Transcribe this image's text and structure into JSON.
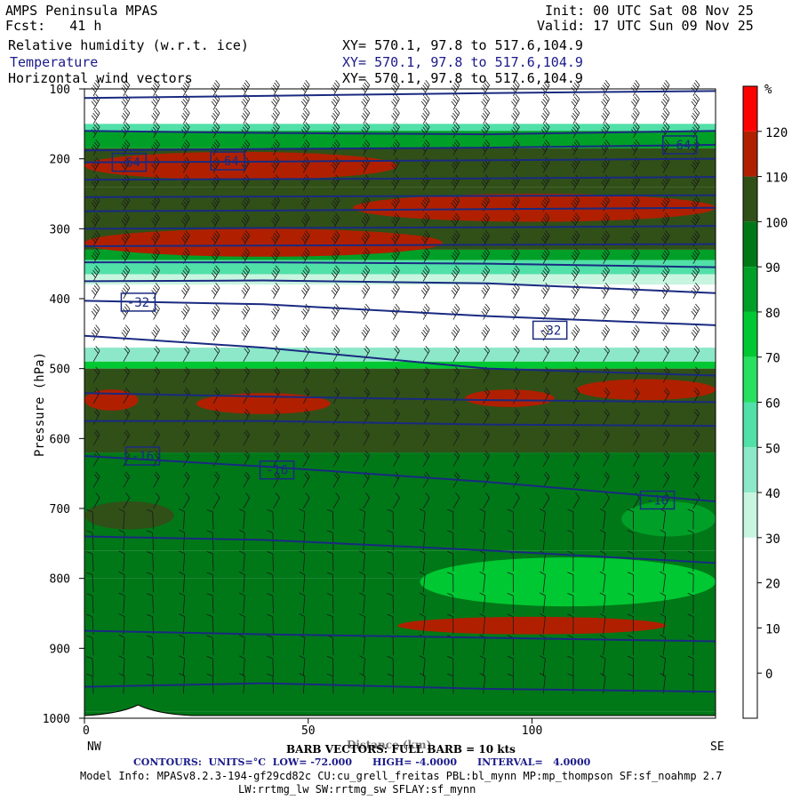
{
  "header": {
    "model": "AMPS Peninsula MPAS",
    "fcst": "Fcst:   41 h",
    "init": "Init: 00 UTC Sat 08 Nov 25",
    "valid": "Valid: 17 UTC Sun 09 Nov 25",
    "fields": [
      {
        "name": "Relative humidity (w.r.t. ice)",
        "xy": "XY= 570.1, 97.8 to 517.6,104.9",
        "color": "#000000"
      },
      {
        "name": "Temperature",
        "xy": "XY= 570.1, 97.8 to 517.6,104.9",
        "color": "#1a1a8a"
      },
      {
        "name": "Horizontal wind vectors",
        "xy": "XY= 570.1, 97.8 to 517.6,104.9",
        "color": "#000000"
      }
    ]
  },
  "footer": {
    "barb": "BARB VECTORS: FULL BARB = 10 kts",
    "xlabel_overlap": "Distance (km)",
    "contours": "CONTOURS:  UNITS=°C  LOW= -72.000      HIGH= -4.0000      INTERVAL=   4.0000",
    "model_info": "Model Info: MPASv8.2.3-194-gf29cd82c CU:cu_grell_freitas PBL:bl_mynn MP:mp_thompson SF:sf_noahmp 2.7",
    "model_info2": "LW:rrtmg_lw SW:rrtmg_sw SFLAY:sf_mynn"
  },
  "chart_data": {
    "type": "heatmap",
    "ylabel": "Pressure (hPa)",
    "xlabel": "Distance (km)",
    "xlim": [
      0,
      141
    ],
    "ylim": [
      1000,
      100
    ],
    "x_ticks": [
      0,
      50,
      100
    ],
    "y_ticks": [
      100,
      200,
      300,
      400,
      500,
      600,
      700,
      800,
      900,
      1000
    ],
    "x_end_labels": {
      "left": "NW",
      "right": "SE"
    },
    "colorbar": {
      "unit": "%",
      "levels": [
        -10,
        0,
        10,
        20,
        30,
        40,
        50,
        60,
        70,
        80,
        90,
        100,
        110,
        120,
        130
      ],
      "tick_labels": [
        0,
        10,
        20,
        30,
        40,
        50,
        60,
        70,
        80,
        90,
        100,
        110,
        120
      ],
      "colors": [
        "#ffffff",
        "#ffffff",
        "#ffffff",
        "#ffffff",
        "#c8f5e0",
        "#8ce8c8",
        "#50e0a8",
        "#28e060",
        "#00c832",
        "#00a028",
        "#007818",
        "#305018",
        "#b02000",
        "#ff0000"
      ]
    },
    "rh_bands": [
      {
        "p_top": 100,
        "p_bot": 150,
        "rh": 5
      },
      {
        "p_top": 150,
        "p_bot": 160,
        "rh": 55
      },
      {
        "p_top": 160,
        "p_bot": 185,
        "rh": 85
      },
      {
        "p_top": 185,
        "p_bot": 240,
        "rh": 105
      },
      {
        "p_top": 240,
        "p_bot": 330,
        "rh": 104
      },
      {
        "p_top": 330,
        "p_bot": 345,
        "rh": 85
      },
      {
        "p_top": 345,
        "p_bot": 365,
        "rh": 55
      },
      {
        "p_top": 365,
        "p_bot": 380,
        "rh": 35
      },
      {
        "p_top": 380,
        "p_bot": 470,
        "rh": 5
      },
      {
        "p_top": 470,
        "p_bot": 490,
        "rh": 45
      },
      {
        "p_top": 490,
        "p_bot": 500,
        "rh": 75
      },
      {
        "p_top": 500,
        "p_bot": 620,
        "rh": 104
      },
      {
        "p_top": 620,
        "p_bot": 760,
        "rh": 95
      },
      {
        "p_top": 760,
        "p_bot": 800,
        "rh": 90
      },
      {
        "p_top": 800,
        "p_bot": 990,
        "rh": 96
      },
      {
        "p_top": 990,
        "p_bot": 1000,
        "rh": 92
      }
    ],
    "rh_patches": [
      {
        "x0": 0,
        "x1": 70,
        "p_top": 190,
        "p_bot": 230,
        "rh": 115
      },
      {
        "x0": 60,
        "x1": 141,
        "p_top": 250,
        "p_bot": 290,
        "rh": 115
      },
      {
        "x0": 0,
        "x1": 80,
        "p_top": 300,
        "p_bot": 340,
        "rh": 115
      },
      {
        "x0": 0,
        "x1": 12,
        "p_top": 530,
        "p_bot": 560,
        "rh": 115
      },
      {
        "x0": 25,
        "x1": 55,
        "p_top": 535,
        "p_bot": 565,
        "rh": 115
      },
      {
        "x0": 85,
        "x1": 105,
        "p_top": 530,
        "p_bot": 555,
        "rh": 115
      },
      {
        "x0": 110,
        "x1": 141,
        "p_top": 515,
        "p_bot": 545,
        "rh": 115
      },
      {
        "x0": 75,
        "x1": 141,
        "p_top": 770,
        "p_bot": 840,
        "rh": 75
      },
      {
        "x0": 70,
        "x1": 130,
        "p_top": 855,
        "p_bot": 880,
        "rh": 115
      },
      {
        "x0": 120,
        "x1": 141,
        "p_top": 690,
        "p_bot": 740,
        "rh": 85
      },
      {
        "x0": 0,
        "x1": 20,
        "p_top": 690,
        "p_bot": 730,
        "rh": 104
      }
    ],
    "isotherms": [
      {
        "p": [
          113,
          110,
          106,
          103
        ]
      },
      {
        "p": [
          160,
          163,
          165,
          160
        ]
      },
      {
        "p": [
          188,
          186,
          184,
          180
        ]
      },
      {
        "p": [
          205,
          204,
          202,
          200
        ]
      },
      {
        "p": [
          230,
          229,
          228,
          226
        ]
      },
      {
        "p": [
          255,
          254,
          253,
          252
        ]
      },
      {
        "p": [
          275,
          274,
          272,
          270
        ]
      },
      {
        "p": [
          300,
          299,
          298,
          296
        ]
      },
      {
        "p": [
          325,
          324,
          323,
          322
        ]
      },
      {
        "p": [
          348,
          348,
          350,
          355
        ]
      },
      {
        "p": [
          375,
          374,
          378,
          392
        ]
      },
      {
        "p": [
          403,
          408,
          425,
          438
        ]
      },
      {
        "p": [
          453,
          470,
          500,
          510
        ]
      },
      {
        "p": [
          535,
          540,
          545,
          548
        ]
      },
      {
        "p": [
          575,
          575,
          580,
          582
        ]
      },
      {
        "p": [
          625,
          640,
          662,
          690
        ]
      },
      {
        "p": [
          740,
          745,
          760,
          778
        ]
      },
      {
        "p": [
          875,
          880,
          885,
          890
        ]
      },
      {
        "p": [
          955,
          950,
          958,
          962
        ]
      }
    ],
    "isotherm_x": [
      0,
      40,
      90,
      141
    ],
    "contour_labels": [
      {
        "text": "-64",
        "x": 10,
        "p": 205
      },
      {
        "text": "-64",
        "x": 32,
        "p": 203
      },
      {
        "text": "-64",
        "x": 133,
        "p": 180
      },
      {
        "text": "-32",
        "x": 12,
        "p": 405
      },
      {
        "text": "-32",
        "x": 104,
        "p": 445
      },
      {
        "text": "-16",
        "x": 13,
        "p": 625
      },
      {
        "text": "-16",
        "x": 43,
        "p": 645
      },
      {
        "text": "-16",
        "x": 128,
        "p": 688
      }
    ],
    "wind_barbs": {
      "x_spacing_km": 6.7,
      "p_levels": [
        110,
        130,
        150,
        170,
        195,
        220,
        245,
        275,
        300,
        325,
        350,
        375,
        400,
        430,
        460,
        490,
        520,
        550,
        580,
        610,
        640,
        670,
        700,
        730,
        760,
        790,
        820,
        850,
        880,
        910,
        940,
        965
      ]
    }
  }
}
